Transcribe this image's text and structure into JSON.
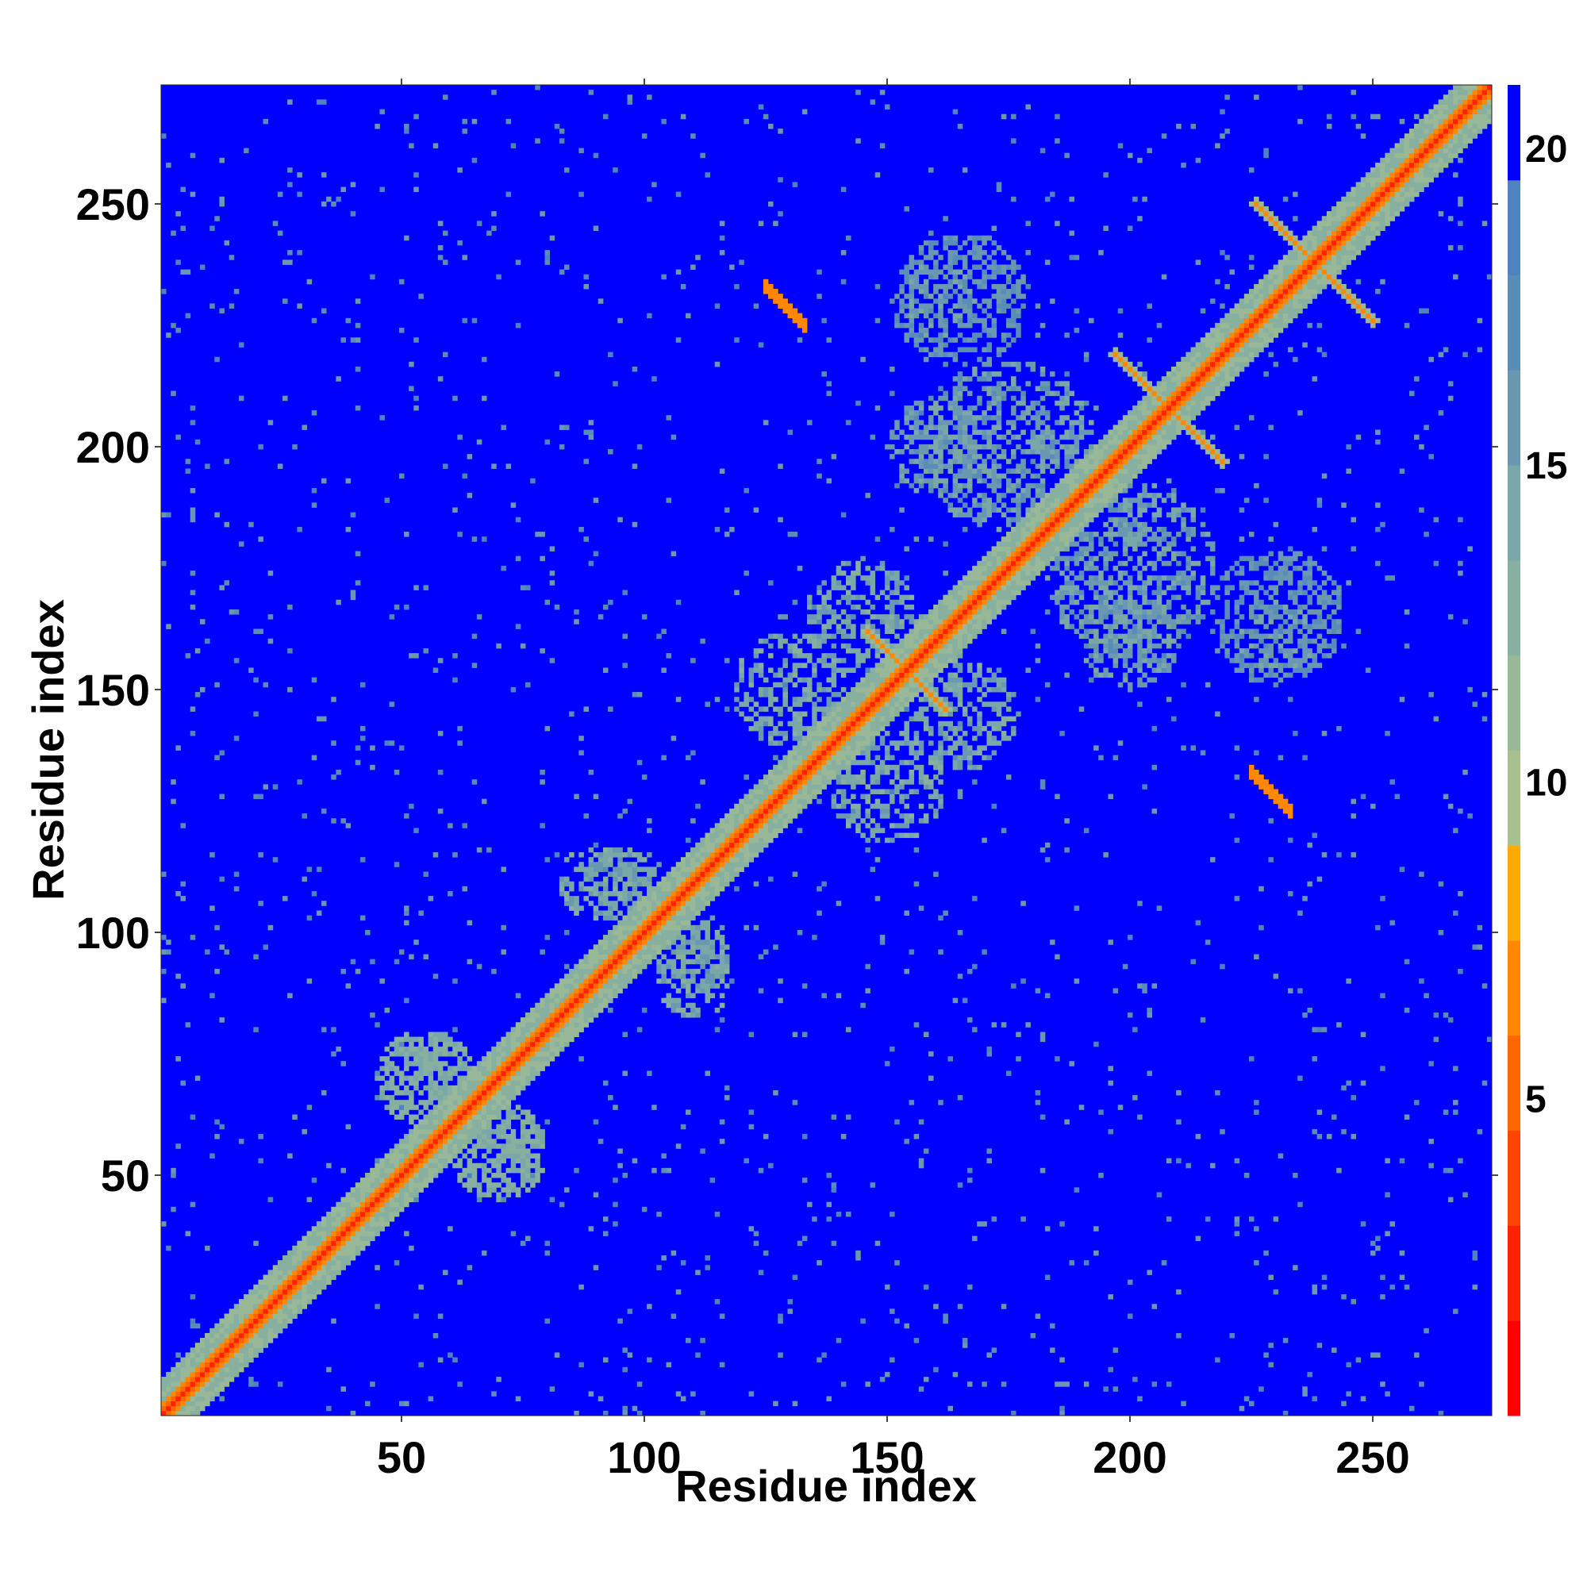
{
  "chart_data": {
    "type": "heatmap",
    "title": "",
    "xlabel": "Residue index",
    "ylabel": "Residue index",
    "xlim": [
      1,
      274
    ],
    "ylim": [
      1,
      274
    ],
    "x_ticks": [
      50,
      100,
      150,
      200,
      250
    ],
    "y_ticks": [
      50,
      100,
      150,
      200,
      250
    ],
    "grid": false,
    "colorbar": {
      "ticks": [
        5,
        10,
        15,
        20
      ],
      "range": [
        0,
        21
      ],
      "colors": [
        "#ff0000",
        "#ff2200",
        "#ff4400",
        "#ff6600",
        "#ff8800",
        "#ffaa00",
        "#a8c090",
        "#98b898",
        "#88b0a0",
        "#7aa8a8",
        "#6a98b0",
        "#5a8cb8",
        "#4f82c0",
        "#0000ff"
      ]
    },
    "matrix_size": 274,
    "background_value": 21,
    "diagonal_band": {
      "core_value": 2,
      "inner_value": 5,
      "outer_value": 11
    },
    "features": [
      {
        "kind": "antidiagonal_strip",
        "center": [
          153,
          153
        ],
        "half_length": 8,
        "value": 6
      },
      {
        "kind": "antidiagonal_strip",
        "center": [
          207,
          207
        ],
        "half_length": 11,
        "value": 6
      },
      {
        "kind": "antidiagonal_strip",
        "center": [
          237,
          237
        ],
        "half_length": 12,
        "value": 6
      },
      {
        "kind": "parallel_strip",
        "from": [
          125,
          233
        ],
        "to": [
          133,
          225
        ],
        "value": 6
      },
      {
        "kind": "parallel_strip",
        "from": [
          225,
          133
        ],
        "to": [
          233,
          125
        ],
        "value": 6
      },
      {
        "kind": "contact_cluster",
        "center": [
          70,
          55
        ],
        "radius": 10,
        "value": 12
      },
      {
        "kind": "contact_cluster",
        "center": [
          55,
          70
        ],
        "radius": 10,
        "value": 12
      },
      {
        "kind": "contact_cluster",
        "center": [
          110,
          95
        ],
        "radius": 8,
        "value": 13
      },
      {
        "kind": "contact_cluster",
        "center": [
          90,
          110
        ],
        "radius": 8,
        "value": 13
      },
      {
        "kind": "contact_cluster",
        "center": [
          150,
          130
        ],
        "radius": 12,
        "value": 13
      },
      {
        "kind": "contact_cluster",
        "center": [
          145,
          165
        ],
        "radius": 12,
        "value": 13
      },
      {
        "kind": "contact_cluster",
        "center": [
          175,
          200
        ],
        "radius": 18,
        "value": 14
      },
      {
        "kind": "contact_cluster",
        "center": [
          200,
          160
        ],
        "radius": 10,
        "value": 14
      },
      {
        "kind": "contact_cluster",
        "center": [
          230,
          160
        ],
        "radius": 8,
        "value": 14
      },
      {
        "kind": "contact_cluster",
        "center": [
          165,
          230
        ],
        "radius": 14,
        "value": 15
      }
    ]
  }
}
